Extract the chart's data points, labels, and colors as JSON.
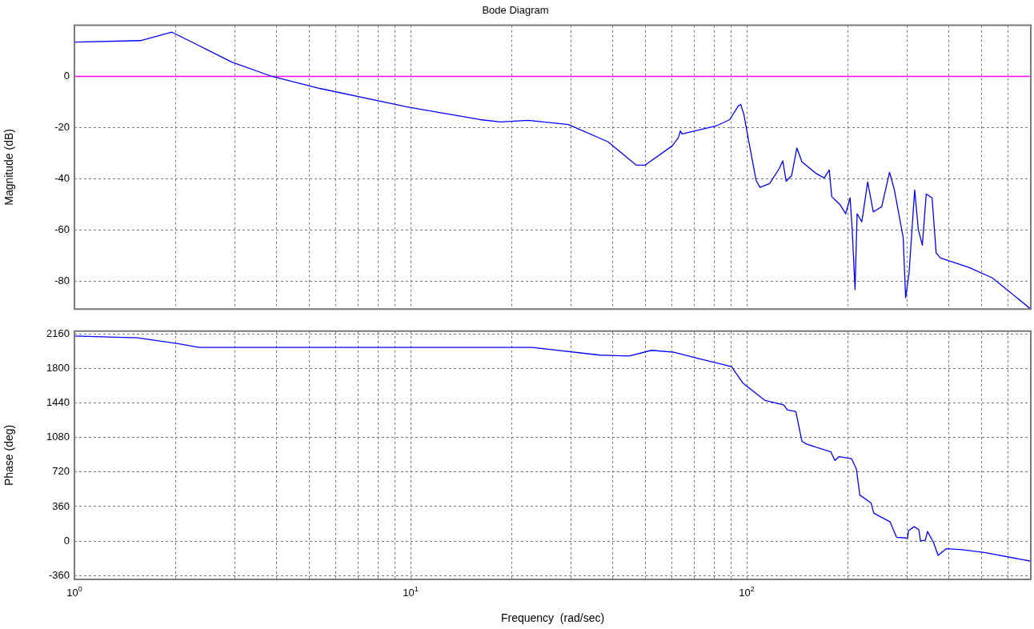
{
  "chart_data": [
    {
      "type": "line",
      "title": "Bode Diagram",
      "ylabel": "Magnitude (dB)",
      "xlim": [
        1,
        700
      ],
      "ylim": [
        -91,
        20
      ],
      "log": "x",
      "grid": true,
      "legend": false,
      "marker": "none",
      "line_style": "solid",
      "tick_labels": "y",
      "xticks": [
        {
          "value": 1,
          "label": null
        },
        {
          "value": 2,
          "label": null
        },
        {
          "value": 3,
          "label": null
        },
        {
          "value": 4,
          "label": null
        },
        {
          "value": 5,
          "label": null
        },
        {
          "value": 6,
          "label": null
        },
        {
          "value": 7,
          "label": null
        },
        {
          "value": 8,
          "label": null
        },
        {
          "value": 9,
          "label": null
        },
        {
          "value": 10,
          "label": null
        },
        {
          "value": 20,
          "label": null
        },
        {
          "value": 30,
          "label": null
        },
        {
          "value": 40,
          "label": null
        },
        {
          "value": 50,
          "label": null
        },
        {
          "value": 60,
          "label": null
        },
        {
          "value": 70,
          "label": null
        },
        {
          "value": 80,
          "label": null
        },
        {
          "value": 90,
          "label": null
        },
        {
          "value": 100,
          "label": null
        },
        {
          "value": 200,
          "label": null
        },
        {
          "value": 300,
          "label": null
        },
        {
          "value": 400,
          "label": null
        },
        {
          "value": 500,
          "label": null
        },
        {
          "value": 600,
          "label": null
        }
      ],
      "yticks": [
        -80,
        -60,
        -40,
        -20,
        0
      ],
      "ref_lines": [
        {
          "axis": "y",
          "value": 0,
          "color": "#ff00ff"
        }
      ],
      "series": [
        {
          "color": "#0000ff",
          "x": [
            1,
            1.57,
            1.95,
            2.36,
            2.94,
            3.87,
            5.37,
            10,
            16.1,
            18.5,
            22.4,
            29.5,
            38.7,
            46.9,
            49.9,
            60,
            62.6,
            63.5,
            64.2,
            81,
            89,
            94.3,
            96,
            98,
            101.3,
            106.6,
            109.5,
            117,
            125,
            128,
            131,
            136,
            141,
            146,
            161,
            170,
            176,
            179,
            189,
            197,
            203,
            206,
            210,
            213,
            220,
            229,
            238,
            252,
            266,
            275,
            292,
            297,
            304,
            316,
            324,
            333,
            342,
            356,
            366,
            377,
            458,
            538,
            700
          ],
          "values": [
            13.4,
            14,
            17.3,
            11.9,
            5.6,
            0,
            -4.7,
            -12.2,
            -16.9,
            -17.8,
            -17.2,
            -18.8,
            -25.6,
            -34.7,
            -34.7,
            -27.2,
            -24,
            -21.3,
            -22.5,
            -19.4,
            -16.9,
            -11.6,
            -11,
            -14.7,
            -25,
            -40.6,
            -43.4,
            -41.9,
            -36,
            -33,
            -41,
            -38.8,
            -28,
            -33.4,
            -38,
            -39.7,
            -36.6,
            -47,
            -50,
            -53.7,
            -47.5,
            -60,
            -83.4,
            -53.7,
            -56.9,
            -41.3,
            -53,
            -51,
            -37.5,
            -44.4,
            -63,
            -86.6,
            -77,
            -44.4,
            -60,
            -66,
            -46,
            -47.5,
            -69,
            -71,
            -74.7,
            -78.8,
            -91
          ]
        }
      ]
    },
    {
      "type": "line",
      "xlabel": "Frequency  (rad/sec)",
      "ylabel": "Phase (deg)",
      "xlim": [
        1,
        700
      ],
      "ylim": [
        -400,
        2190
      ],
      "log": "x",
      "grid": true,
      "legend": false,
      "marker": "none",
      "line_style": "solid",
      "xticks": [
        {
          "value": 1,
          "label": "10$^{0}$"
        },
        {
          "value": 2,
          "label": null
        },
        {
          "value": 3,
          "label": null
        },
        {
          "value": 4,
          "label": null
        },
        {
          "value": 5,
          "label": null
        },
        {
          "value": 6,
          "label": null
        },
        {
          "value": 7,
          "label": null
        },
        {
          "value": 8,
          "label": null
        },
        {
          "value": 9,
          "label": null
        },
        {
          "value": 10,
          "label": "10$^{1}$"
        },
        {
          "value": 20,
          "label": null
        },
        {
          "value": 30,
          "label": null
        },
        {
          "value": 40,
          "label": null
        },
        {
          "value": 50,
          "label": null
        },
        {
          "value": 60,
          "label": null
        },
        {
          "value": 70,
          "label": null
        },
        {
          "value": 80,
          "label": null
        },
        {
          "value": 90,
          "label": null
        },
        {
          "value": 100,
          "label": "10$^{2}$"
        },
        {
          "value": 200,
          "label": null
        },
        {
          "value": 300,
          "label": null
        },
        {
          "value": 400,
          "label": null
        },
        {
          "value": 500,
          "label": null
        },
        {
          "value": 600,
          "label": null
        }
      ],
      "yticks": [
        -360,
        0,
        360,
        720,
        1080,
        1440,
        1800,
        2160
      ],
      "series": [
        {
          "color": "#0000ff",
          "x": [
            1,
            1.54,
            2.03,
            2.35,
            23,
            36.6,
            44.7,
            52.1,
            60.7,
            70.8,
            90.1,
            97.3,
            113,
            129,
            132,
            140,
            146,
            151,
            178,
            183,
            188,
            205,
            212,
            217,
            234,
            239,
            267,
            279,
            301,
            303,
            315,
            325,
            329,
            340,
            345,
            359,
            371,
            392,
            437,
            509,
            700
          ],
          "values": [
            2140,
            2120,
            2060,
            2020,
            2020,
            1940,
            1930,
            1990,
            1970,
            1910,
            1820,
            1650,
            1470,
            1420,
            1370,
            1350,
            1040,
            1010,
            930,
            840,
            880,
            860,
            750,
            480,
            400,
            290,
            200,
            40,
            30,
            110,
            150,
            120,
            0,
            10,
            100,
            -10,
            -150,
            -80,
            -90,
            -120,
            -210
          ]
        }
      ]
    }
  ]
}
